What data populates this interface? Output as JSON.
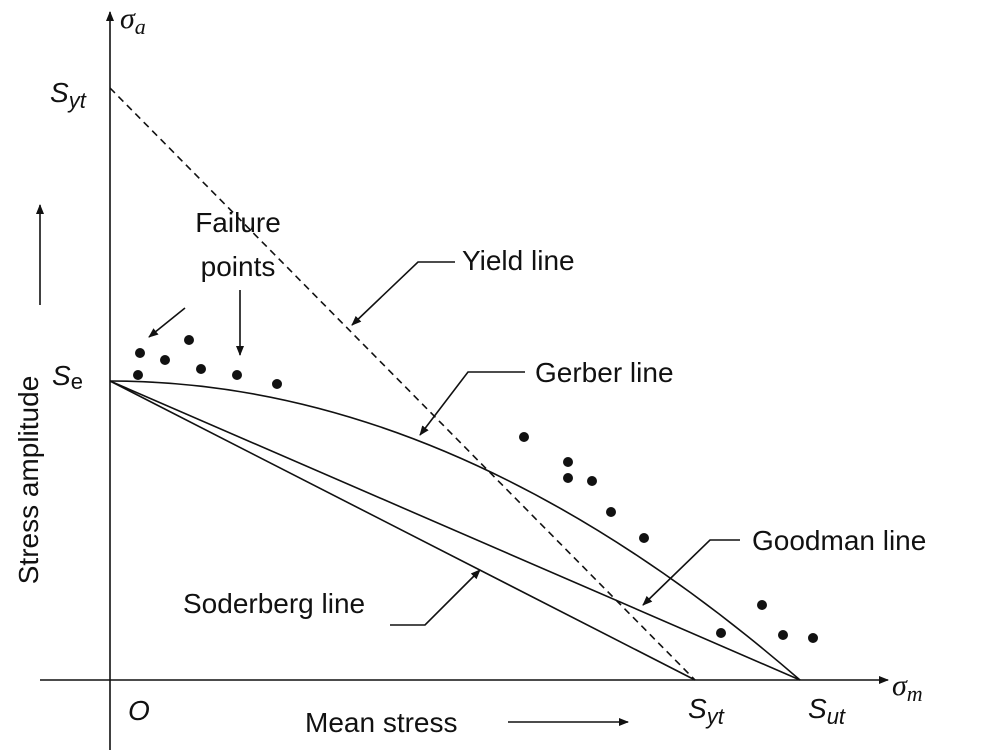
{
  "title_axis_y": {
    "main": "σ",
    "sub": "a"
  },
  "title_axis_x": {
    "main": "σ",
    "sub": "m"
  },
  "y_labels": {
    "syt": {
      "main": "S",
      "sub": "yt"
    },
    "se": {
      "main": "S",
      "sub": "e"
    }
  },
  "x_labels": {
    "origin": "O",
    "syt": {
      "main": "S",
      "sub": "yt"
    },
    "sut": {
      "main": "S",
      "sub": "ut"
    }
  },
  "axis_names": {
    "y": "Stress amplitude",
    "x": "Mean stress"
  },
  "annotations": {
    "failure": [
      "Failure",
      "points"
    ],
    "yield": "Yield line",
    "gerber": "Gerber line",
    "goodman": "Goodman line",
    "soderberg": "Soderberg line"
  }
}
